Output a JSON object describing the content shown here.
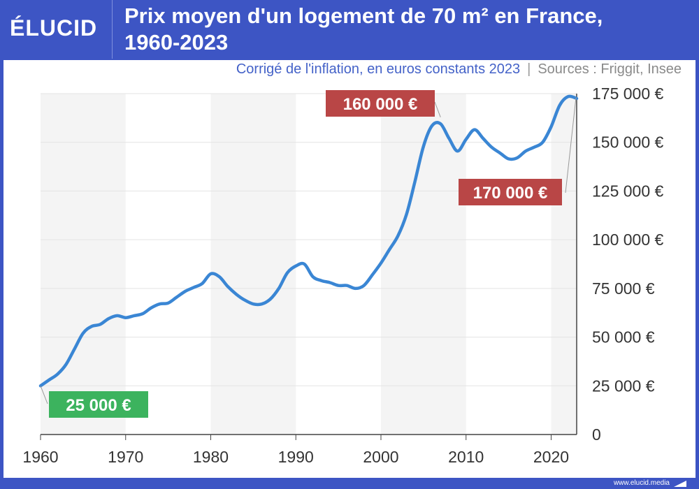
{
  "brand": {
    "logo": "ÉLUCID",
    "url": "www.elucid.media"
  },
  "header": {
    "title_line1": "Prix moyen d'un logement de 70 m² en France,",
    "title_line2": "1960-2023"
  },
  "subtitle": {
    "main": "Corrigé de l'inflation, en euros constants 2023",
    "sources": "Sources : Friggit, Insee"
  },
  "colors": {
    "line": "#3a86d4",
    "background": "#3d55c4",
    "label_green": "#3cb35e",
    "label_red": "#b94646"
  },
  "chart_data": {
    "type": "line",
    "title": "Prix moyen d'un logement de 70 m² en France, 1960-2023",
    "subtitle": "Corrigé de l'inflation, en euros constants 2023",
    "xlim": [
      1960,
      2023
    ],
    "ylim": [
      0,
      175000
    ],
    "x_ticks": [
      "1960",
      "1970",
      "1980",
      "1990",
      "2000",
      "2010",
      "2020"
    ],
    "y_ticks": [
      "0",
      "25 000 €",
      "50 000 €",
      "75 000 €",
      "100 000 €",
      "125 000 €",
      "150 000 €",
      "175 000 €"
    ],
    "y_tick_values": [
      0,
      25000,
      50000,
      75000,
      100000,
      125000,
      150000,
      175000
    ],
    "grid": true,
    "y_axis_side": "right",
    "series": [
      {
        "x": [
          1960,
          1961,
          1962,
          1963,
          1964,
          1965,
          1966,
          1967,
          1968,
          1969,
          1970,
          1971,
          1972,
          1973,
          1974,
          1975,
          1976,
          1977,
          1978,
          1979,
          1980,
          1981,
          1982,
          1983,
          1984,
          1985,
          1986,
          1987,
          1988,
          1989,
          1990,
          1991,
          1992,
          1993,
          1994,
          1995,
          1996,
          1997,
          1998,
          1999,
          2000,
          2001,
          2002,
          2003,
          2004,
          2005,
          2006,
          2007,
          2008,
          2009,
          2010,
          2011,
          2012,
          2013,
          2014,
          2015,
          2016,
          2017,
          2018,
          2019,
          2020,
          2021,
          2022,
          2023
        ],
        "values": [
          25000,
          28000,
          31000,
          36000,
          44000,
          52000,
          55500,
          56500,
          59500,
          61000,
          60000,
          61000,
          62000,
          65000,
          67000,
          67500,
          70500,
          73500,
          75500,
          77500,
          82500,
          81000,
          76000,
          72000,
          69000,
          67000,
          67000,
          69500,
          75000,
          83000,
          86500,
          87500,
          81000,
          79000,
          78000,
          76500,
          76500,
          75000,
          76500,
          82000,
          88000,
          95000,
          102000,
          113000,
          130000,
          148000,
          158500,
          159500,
          152000,
          145500,
          151500,
          156500,
          152000,
          147500,
          144500,
          141500,
          142000,
          145500,
          147500,
          150000,
          158000,
          169000,
          173500,
          172500
        ]
      }
    ],
    "annotations": [
      {
        "x": 1960,
        "y": 25000,
        "text": "25 000 €"
      },
      {
        "x": 2007,
        "y": 160000,
        "text": "160 000 €"
      },
      {
        "x": 2023,
        "y": 170000,
        "text": "170 000 €"
      }
    ]
  }
}
